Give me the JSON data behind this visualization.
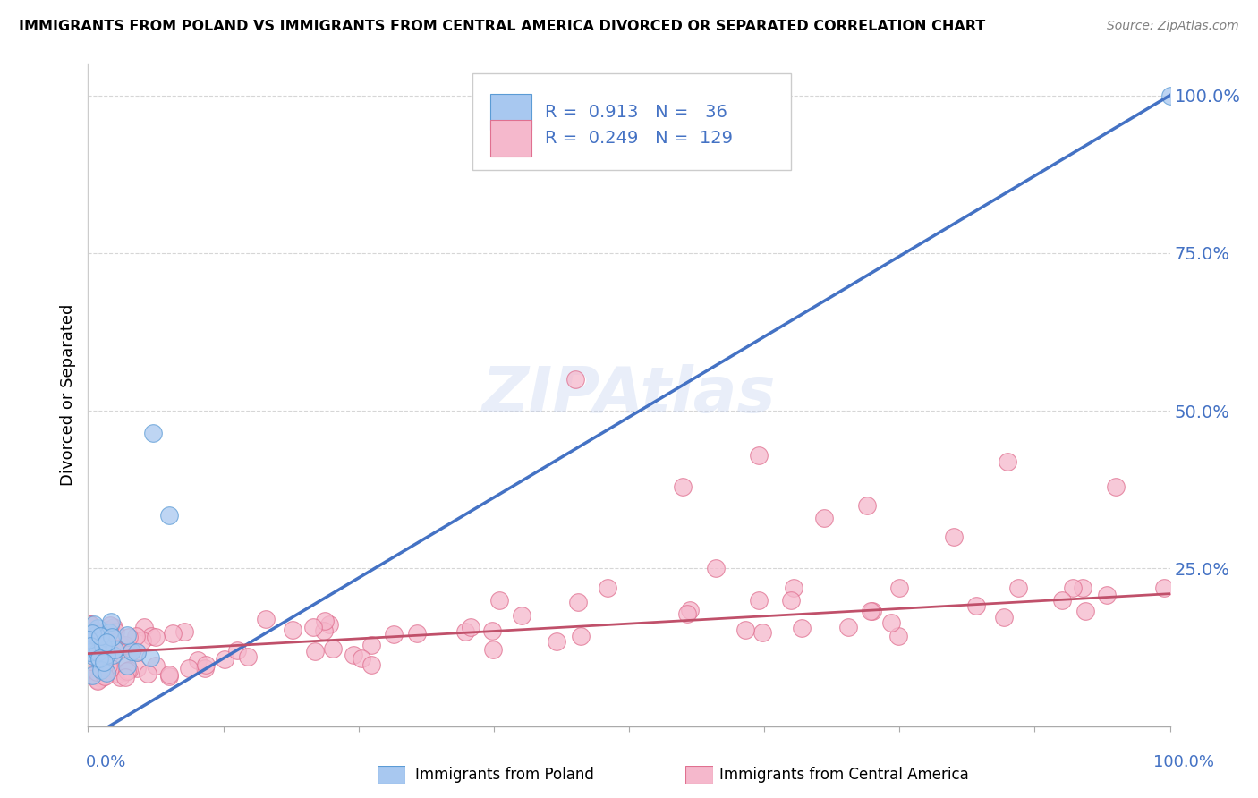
{
  "title": "IMMIGRANTS FROM POLAND VS IMMIGRANTS FROM CENTRAL AMERICA DIVORCED OR SEPARATED CORRELATION CHART",
  "source": "Source: ZipAtlas.com",
  "ylabel": "Divorced or Separated",
  "blue_R": 0.913,
  "blue_N": 36,
  "pink_R": 0.249,
  "pink_N": 129,
  "blue_color": "#A8C8F0",
  "blue_edge_color": "#5B9BD5",
  "blue_line_color": "#4472C4",
  "pink_color": "#F5B8CC",
  "pink_edge_color": "#E07090",
  "pink_line_color": "#C0506A",
  "watermark_color": "#C0D0F0",
  "background_color": "#FFFFFF",
  "legend_label_blue": "Immigrants from Poland",
  "legend_label_pink": "Immigrants from Central America",
  "legend_text_color": "#4472C4",
  "ytick_color": "#4472C4",
  "xlabel_color": "#4472C4",
  "title_color": "#000000",
  "source_color": "#808080",
  "grid_color": "#CCCCCC",
  "blue_line_intercept": -0.02,
  "blue_line_slope": 1.02,
  "pink_line_intercept": 0.115,
  "pink_line_slope": 0.095
}
